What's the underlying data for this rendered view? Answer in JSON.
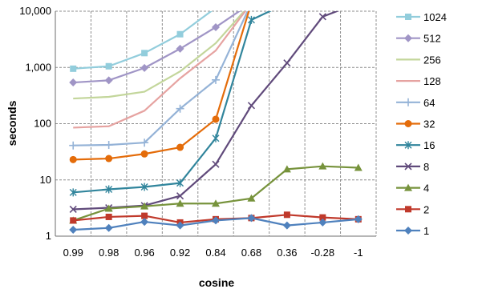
{
  "chart_data": {
    "type": "line",
    "x_label": "cosine",
    "y_label": "seconds",
    "y_scale": "log",
    "ylim": [
      1,
      10000
    ],
    "y_ticks": [
      "1",
      "10",
      "100",
      "1,000",
      "10,000"
    ],
    "categories": [
      "0.99",
      "0.98",
      "0.96",
      "0.92",
      "0.84",
      "0.68",
      "0.36",
      "-0.28",
      "-1"
    ],
    "grid": "dashed, both axes",
    "legend_position": "right",
    "series": [
      {
        "name": "1024",
        "color": "#92CDDC",
        "marker": "square",
        "values": [
          950,
          1050,
          1800,
          3900,
          11500,
          null,
          null,
          null,
          null
        ]
      },
      {
        "name": "512",
        "color": "#A095C6",
        "marker": "diamond",
        "values": [
          540,
          590,
          980,
          2150,
          5200,
          14000,
          null,
          null,
          null
        ]
      },
      {
        "name": "256",
        "color": "#C3D69B",
        "marker": "none",
        "values": [
          280,
          300,
          370,
          850,
          2700,
          14000,
          null,
          null,
          null
        ]
      },
      {
        "name": "128",
        "color": "#E6A3A1",
        "marker": "none",
        "values": [
          85,
          90,
          170,
          640,
          2000,
          14000,
          null,
          null,
          null
        ]
      },
      {
        "name": "64",
        "color": "#95B3D7",
        "marker": "plus",
        "values": [
          41,
          42,
          46,
          185,
          600,
          14000,
          null,
          null,
          null
        ]
      },
      {
        "name": "32",
        "color": "#E46C0A",
        "marker": "circle",
        "values": [
          23,
          24,
          29,
          38,
          120,
          14000,
          null,
          null,
          null
        ]
      },
      {
        "name": "16",
        "color": "#31859C",
        "marker": "asterisk",
        "values": [
          6,
          6.8,
          7.5,
          8.8,
          55,
          7000,
          14000,
          null,
          null
        ]
      },
      {
        "name": "8",
        "color": "#604A7B",
        "marker": "x",
        "values": [
          3,
          3.2,
          3.5,
          5.2,
          19,
          210,
          1200,
          8000,
          14000
        ]
      },
      {
        "name": "4",
        "color": "#77933C",
        "marker": "triangle",
        "values": [
          1.9,
          3.1,
          3.4,
          3.8,
          3.8,
          4.7,
          15.5,
          17.5,
          16.5
        ]
      },
      {
        "name": "2",
        "color": "#C0392B",
        "marker": "square",
        "values": [
          1.9,
          2.2,
          2.3,
          1.75,
          2.0,
          2.1,
          2.4,
          2.15,
          2.0
        ]
      },
      {
        "name": "1",
        "color": "#4F81BD",
        "marker": "diamond",
        "values": [
          1.3,
          1.4,
          1.8,
          1.55,
          1.9,
          2.1,
          1.55,
          1.75,
          2.0
        ]
      }
    ]
  }
}
